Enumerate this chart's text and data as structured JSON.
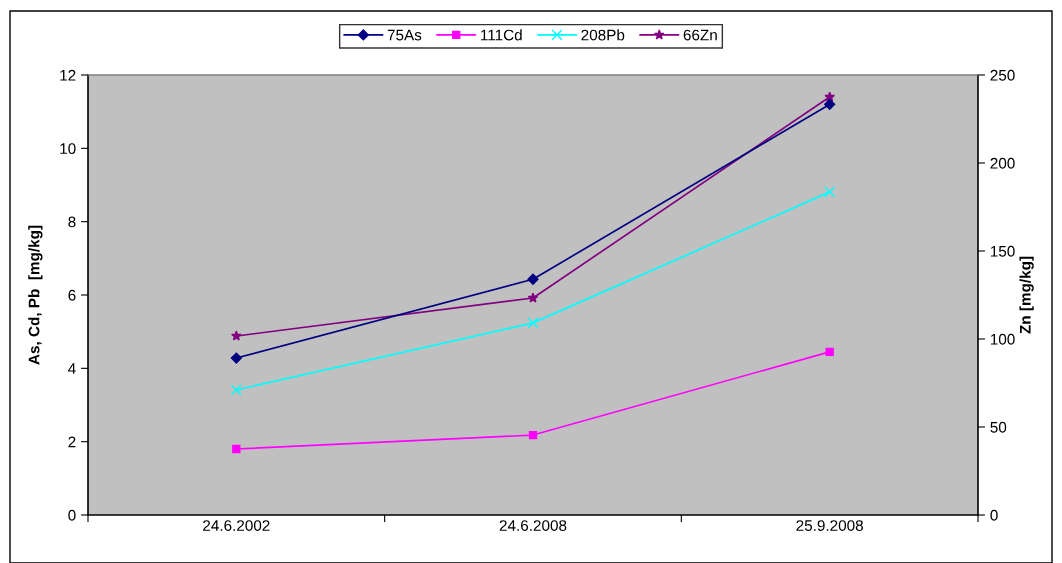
{
  "chart_data": {
    "type": "line",
    "ylabel": "As, Cd, Pb  [mg/kg]",
    "y2label": "Zn [mg/kg]",
    "categories": [
      "24.6.2002",
      "24.6.2008",
      "25.9.2008"
    ],
    "series": [
      {
        "name": "75As",
        "color": "#000080",
        "marker": "diamond",
        "values": [
          4.28,
          6.43,
          11.2
        ]
      },
      {
        "name": "111Cd",
        "color": "#ff00ff",
        "marker": "square",
        "values": [
          1.8,
          2.18,
          4.45
        ]
      },
      {
        "name": "208Pb",
        "color": "#00ffff",
        "marker": "cross",
        "values": [
          3.41,
          5.24,
          8.81
        ]
      },
      {
        "name": "66Zn",
        "color": "#800080",
        "marker": "star",
        "axis": "y2",
        "values": [
          101.7,
          123.3,
          237.5
        ]
      }
    ],
    "ylim": [
      0,
      12
    ],
    "yticks": [
      0,
      2,
      4,
      6,
      8,
      10,
      12
    ],
    "y2lim": [
      0,
      250
    ],
    "y2ticks": [
      0,
      50,
      100,
      150,
      200,
      250
    ],
    "grid": false,
    "legend": "top"
  }
}
